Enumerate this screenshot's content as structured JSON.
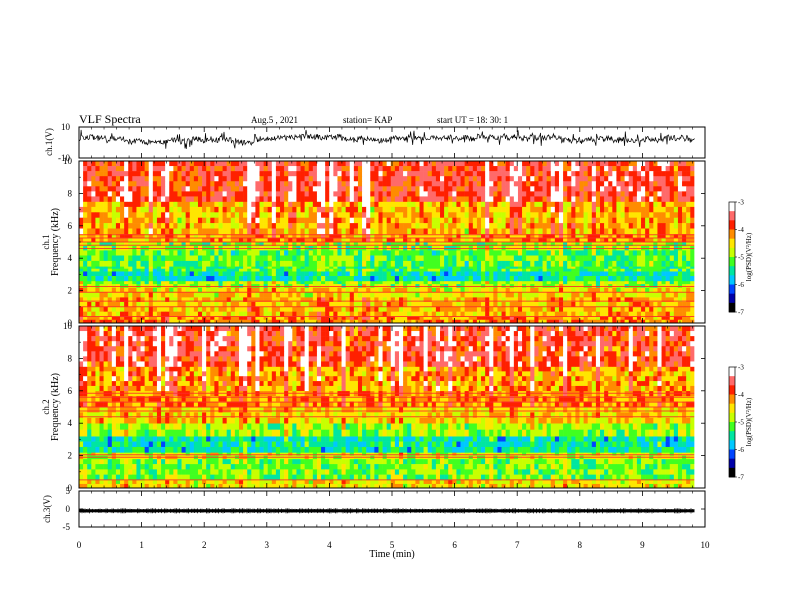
{
  "header": {
    "title": "VLF Spectra",
    "date": "Aug.5  , 2021",
    "station": "station= KAP",
    "start": "start  UT  =   18: 30: 1"
  },
  "chart_data": [
    {
      "type": "line",
      "panel": "ch1-waveform",
      "ylabel": "ch.1(V)",
      "ylim": [
        -10,
        10
      ],
      "ytick_labels": [
        "10",
        "-10"
      ],
      "xlim": [
        0,
        10
      ],
      "data_extent_min": 9.83,
      "baseline_v": 2.5,
      "amplitude_v": 3.5,
      "color": "#000000"
    },
    {
      "type": "heatmap",
      "panel": "ch1-spectrogram",
      "ylabel": "ch.1\nFrequency  (kHz)",
      "ylim": [
        0,
        10
      ],
      "yticks": [
        0,
        2,
        4,
        6,
        8,
        10
      ],
      "xlim": [
        0,
        10
      ],
      "data_extent_min": 9.83,
      "bands": [
        {
          "f": [
            0,
            0.4
          ],
          "v": -4.2
        },
        {
          "f": [
            0.4,
            1.6
          ],
          "v": -4.4
        },
        {
          "f": [
            1.6,
            2.2
          ],
          "v": -4.6
        },
        {
          "f": [
            2.2,
            2.6
          ],
          "v": -5.0
        },
        {
          "f": [
            2.6,
            3.2
          ],
          "v": -5.6
        },
        {
          "f": [
            3.2,
            3.5
          ],
          "v": -5.3
        },
        {
          "f": [
            3.5,
            4.5
          ],
          "v": -5.2
        },
        {
          "f": [
            4.5,
            5.0
          ],
          "v": -5.0
        },
        {
          "f": [
            5.0,
            5.5
          ],
          "v": -4.3
        },
        {
          "f": [
            5.5,
            7.5
          ],
          "v": -4.4
        },
        {
          "f": [
            7.5,
            10
          ],
          "v": -3.8
        }
      ],
      "lines_khz": [
        0.4,
        1.0,
        1.35,
        1.9,
        2.25,
        4.6,
        4.8,
        5.0,
        5.25,
        5.45
      ]
    },
    {
      "type": "heatmap",
      "panel": "ch2-spectrogram",
      "ylabel": "ch.2\nFrequency  (kHz)",
      "ylim": [
        0,
        10
      ],
      "yticks": [
        0,
        2,
        4,
        6,
        8,
        10
      ],
      "xlim": [
        0,
        10
      ],
      "data_extent_min": 9.83,
      "bands": [
        {
          "f": [
            0,
            0.5
          ],
          "v": -4.6
        },
        {
          "f": [
            0.5,
            1.8
          ],
          "v": -5.1
        },
        {
          "f": [
            1.8,
            2.2
          ],
          "v": -4.8
        },
        {
          "f": [
            2.2,
            3.2
          ],
          "v": -5.6
        },
        {
          "f": [
            3.2,
            4.0
          ],
          "v": -5.0
        },
        {
          "f": [
            4.0,
            5.0
          ],
          "v": -4.5
        },
        {
          "f": [
            5.0,
            6.0
          ],
          "v": -4.2
        },
        {
          "f": [
            6.0,
            7.5
          ],
          "v": -4.3
        },
        {
          "f": [
            7.5,
            10
          ],
          "v": -3.8
        }
      ],
      "lines_khz": [
        0.5,
        1.9,
        2.05,
        4.4,
        4.75,
        5.0,
        5.3,
        5.6,
        5.85
      ]
    },
    {
      "type": "line",
      "panel": "ch3-waveform",
      "ylabel": "ch.3(V)",
      "ylim": [
        -5,
        5
      ],
      "yticks": [
        -5,
        0,
        5
      ],
      "ytick_labels": [
        "-5",
        "0",
        "5"
      ],
      "xlim": [
        0,
        10
      ],
      "data_extent_min": 9.83,
      "baseline_v": -0.5,
      "amplitude_v": 0.4,
      "color": "#000000"
    }
  ],
  "x_axis": {
    "label": "Time  (min)",
    "ticks": [
      0,
      1,
      2,
      3,
      4,
      5,
      6,
      7,
      8,
      9,
      10
    ],
    "tick_labels": [
      "0",
      "1",
      "2",
      "3",
      "4",
      "5",
      "6",
      "7",
      "8",
      "9",
      "10"
    ]
  },
  "colorbar": {
    "label": "log(PSD)(V²/Hz)",
    "range": [
      -7,
      -3
    ],
    "ticks": [
      -3,
      -4,
      -5,
      -6,
      -7
    ],
    "tick_labels": [
      "-3",
      "-4",
      "-5",
      "-6",
      "-7"
    ],
    "colors": [
      "#000000",
      "#0000a8",
      "#0044ff",
      "#00c8ff",
      "#00e6a0",
      "#40ff20",
      "#c8ff00",
      "#ffe600",
      "#ff8c00",
      "#ff2000",
      "#ff6a6a",
      "#ffffff"
    ]
  }
}
